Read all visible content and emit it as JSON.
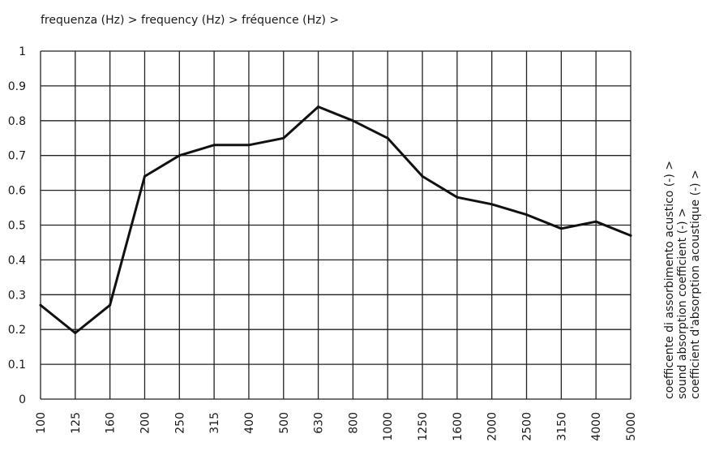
{
  "chart_data": {
    "type": "line",
    "title": "",
    "xlabel": "frequenza (Hz) > frequency (Hz) > fréquence (Hz) >",
    "ylabel_lines": [
      "coefficente di assorbimento acustico (-) >",
      "sound absorption coefficient (-) >",
      "coefficient d'absorption acoustique (-) >"
    ],
    "x_scale": "categorical-log (third-octave bands)",
    "categories": [
      "100",
      "125",
      "160",
      "200",
      "250",
      "315",
      "400",
      "500",
      "630",
      "800",
      "1000",
      "1250",
      "1600",
      "2000",
      "2500",
      "3150",
      "4000",
      "5000"
    ],
    "series": [
      {
        "values": [
          0.27,
          0.19,
          0.27,
          0.64,
          0.7,
          0.73,
          0.73,
          0.75,
          0.84,
          0.8,
          0.75,
          0.64,
          0.58,
          0.56,
          0.53,
          0.49,
          0.51,
          0.47
        ],
        "color": "#111111"
      }
    ],
    "yticks": [
      "0",
      "0.1",
      "0.2",
      "0.3",
      "0.4",
      "0.5",
      "0.6",
      "0.7",
      "0.8",
      "0.9",
      "1"
    ],
    "ylim": [
      0,
      1
    ],
    "grid": true,
    "legend": "none"
  }
}
